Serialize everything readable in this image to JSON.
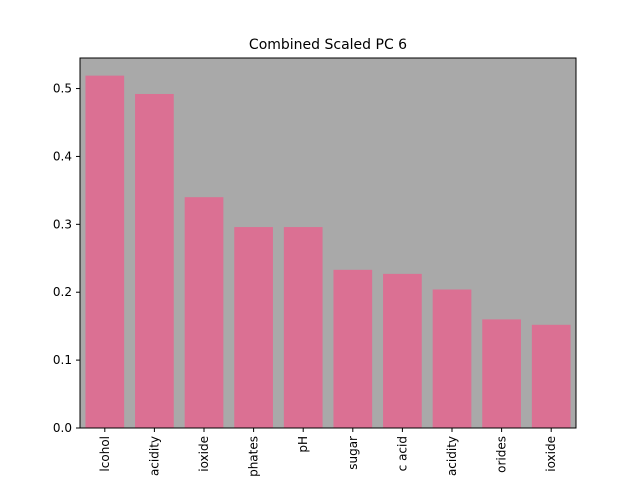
{
  "chart_data": {
    "type": "bar",
    "title": "Combined Scaled PC 6",
    "xlabel": "",
    "ylabel": "",
    "categories": [
      "lcohol",
      "acidity",
      "ioxide",
      "phates",
      "pH",
      "sugar",
      "c acid",
      "acidity",
      "orides",
      "ioxide"
    ],
    "values": [
      0.519,
      0.492,
      0.34,
      0.296,
      0.296,
      0.233,
      0.227,
      0.204,
      0.16,
      0.152
    ],
    "ylim": [
      0,
      0.545
    ],
    "yticks": [
      0.0,
      0.1,
      0.2,
      0.3,
      0.4,
      0.5
    ],
    "ytick_labels": [
      "0.0",
      "0.1",
      "0.2",
      "0.3",
      "0.4",
      "0.5"
    ],
    "grid": false,
    "legend": "none",
    "colors": {
      "bar": "#db7093",
      "plot_background": "#a9a9a9",
      "axes": "#000000"
    }
  }
}
